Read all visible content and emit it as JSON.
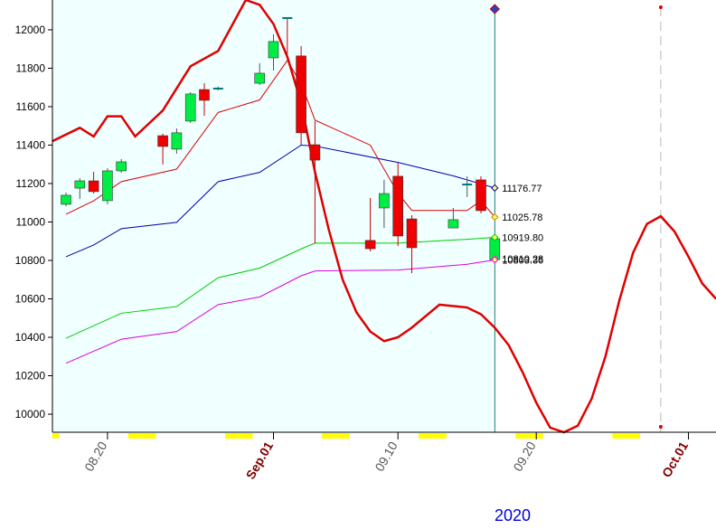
{
  "chart_data": {
    "type": "candlestick",
    "year": "2020",
    "ylim": [
      9906,
      12155
    ],
    "yticks": [
      10000,
      10200,
      10400,
      10600,
      10800,
      11000,
      11200,
      11400,
      11600,
      11800,
      12000
    ],
    "xticks": [
      "08.20",
      {
        "value": "09.01",
        "label": "Sep.01"
      },
      "09.10",
      "09.20",
      {
        "value": "10.01",
        "label": "Oct.01"
      }
    ],
    "vlines": [
      "09.17",
      "09.29"
    ],
    "candles": {
      "x": [
        "08.17",
        "08.18",
        "08.19",
        "08.20",
        "08.21",
        "08.24",
        "08.25",
        "08.26",
        "08.27",
        "08.28",
        "08.31",
        "09.01",
        "09.02",
        "09.03",
        "09.04",
        "09.08",
        "09.09",
        "09.10",
        "09.11",
        "09.14",
        "09.15",
        "09.16",
        "09.17"
      ],
      "open": [
        11092,
        11176,
        11214,
        11111,
        11266,
        11449,
        11379,
        11525,
        11689,
        11694,
        11722,
        11854,
        12061,
        11864,
        11402,
        10904,
        11073,
        11238,
        11016,
        10969,
        11195,
        11219,
        10804
      ],
      "high": [
        11153,
        11228,
        11261,
        11280,
        11327,
        11459,
        11487,
        11675,
        11722,
        11704,
        11826,
        11976,
        12061,
        11915,
        11525,
        11125,
        11219,
        11308,
        11035,
        11073,
        11238,
        11238,
        10932
      ],
      "low": [
        11082,
        11120,
        11148,
        11092,
        11256,
        11299,
        11355,
        11515,
        11553,
        11685,
        11713,
        11788,
        11873,
        11402,
        10889,
        10847,
        10969,
        10875,
        10734,
        10988,
        11130,
        11045,
        10790
      ],
      "close": [
        11139,
        11214,
        11158,
        11266,
        11313,
        11393,
        11464,
        11666,
        11633,
        11694,
        11774,
        11939,
        12055,
        11464,
        11322,
        10861,
        11148,
        10927,
        10866,
        11012,
        11195,
        11059,
        10913
      ]
    },
    "lines": [
      {
        "color": "#0000aa",
        "width": 1,
        "x": [
          "08.17",
          "08.19",
          "08.21",
          "08.25",
          "08.28",
          "08.31",
          "09.03",
          "09.04",
          "09.10",
          "09.14",
          "09.17"
        ],
        "values": [
          10819,
          10880,
          10965,
          10998,
          11210,
          11258,
          11400,
          11395,
          11310,
          11240,
          11177
        ]
      },
      {
        "color": "#dd0000",
        "width": 1,
        "x": [
          "08.17",
          "08.19",
          "08.21",
          "08.25",
          "08.28",
          "08.31",
          "09.02",
          "09.03",
          "09.04",
          "09.08",
          "09.10",
          "09.11",
          "09.15",
          "09.16",
          "09.17"
        ],
        "values": [
          11040,
          11110,
          11210,
          11275,
          11570,
          11635,
          11840,
          11720,
          11530,
          11400,
          11150,
          11060,
          11060,
          11110,
          11026
        ]
      },
      {
        "color": "#00cc00",
        "width": 1,
        "x": [
          "08.17",
          "08.21",
          "08.25",
          "08.28",
          "08.31",
          "09.03",
          "09.04",
          "09.10",
          "09.15",
          "09.17"
        ],
        "values": [
          10395,
          10525,
          10560,
          10710,
          10760,
          10860,
          10890,
          10890,
          10910,
          10920
        ]
      },
      {
        "color": "#dd00dd",
        "width": 1,
        "x": [
          "08.17",
          "08.21",
          "08.25",
          "08.28",
          "08.31",
          "09.03",
          "09.04",
          "09.10",
          "09.15",
          "09.17"
        ],
        "values": [
          10265,
          10390,
          10430,
          10570,
          10610,
          10720,
          10745,
          10750,
          10780,
          10803
        ]
      },
      {
        "color": "#e00000",
        "width": 2.5,
        "x": [
          "08.16",
          "08.18",
          "08.19",
          "08.20",
          "08.21",
          "08.22",
          "08.24",
          "08.26",
          "08.28",
          "08.30",
          "08.31",
          "09.01",
          "09.02",
          "09.03",
          "09.04",
          "09.05",
          "09.06",
          "09.07",
          "09.08",
          "09.09",
          "09.10",
          "09.11",
          "09.13",
          "09.15",
          "09.16",
          "09.17",
          "09.18",
          "09.19",
          "09.20",
          "09.21",
          "09.22",
          "09.23",
          "09.24",
          "09.25",
          "09.26",
          "09.27",
          "09.28",
          "09.29",
          "09.30",
          "10.01",
          "10.02",
          "10.03"
        ],
        "values": [
          11420,
          11490,
          11445,
          11550,
          11550,
          11445,
          11580,
          11810,
          11890,
          12155,
          12130,
          12030,
          11860,
          11620,
          11260,
          10960,
          10700,
          10530,
          10430,
          10380,
          10400,
          10450,
          10570,
          10555,
          10520,
          10450,
          10360,
          10220,
          10060,
          9930,
          9906,
          9940,
          10080,
          10300,
          10590,
          10840,
          10990,
          11030,
          10950,
          10820,
          10680,
          10600
        ]
      }
    ],
    "last_labels": [
      {
        "value": 11176.77,
        "label": "11176.77",
        "color": "#0000aa"
      },
      {
        "value": 11025.78,
        "label": "11025.78",
        "color": "#cc8800"
      },
      {
        "value": 10919.8,
        "label": "10919.80",
        "color": "#00cc00"
      },
      {
        "value": 10810.28,
        "label": "10810.28",
        "color": "#888888"
      },
      {
        "value": 10803.36,
        "label": "10803.36",
        "color": "#dd00dd"
      }
    ]
  }
}
